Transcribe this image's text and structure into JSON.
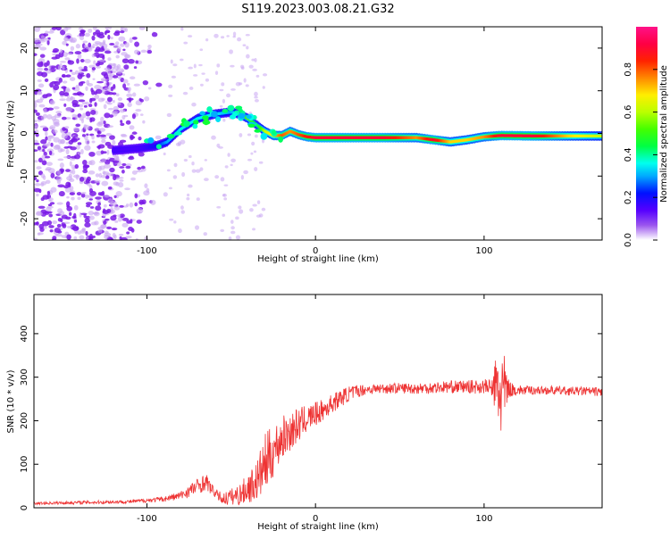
{
  "title": "S119.2023.003.08.21.G32",
  "colors": {
    "snr_line": "#ee3333",
    "spectrum_purple": "#7a1ae6",
    "spectrum_light": "#c9a6f2"
  },
  "chart_data": [
    {
      "type": "heatmap",
      "xlabel": "Height of straight line (km)",
      "ylabel": "Frequency (Hz)",
      "xlim": [
        -167,
        170
      ],
      "ylim": [
        -25,
        25
      ],
      "xticks": [
        -100,
        0,
        100
      ],
      "yticks": [
        -20,
        -10,
        0,
        10,
        20
      ],
      "colorbar": {
        "label": "Normalized spectral amplitude",
        "ticks": [
          "0.0",
          "0.2",
          "0.4",
          "0.6",
          "0.8"
        ],
        "tick_values": [
          0,
          0.2,
          0.4,
          0.6,
          0.8
        ],
        "range": [
          0,
          1
        ]
      },
      "ridge": {
        "x": [
          -120,
          -105,
          -95,
          -88,
          -80,
          -70,
          -60,
          -50,
          -45,
          -40,
          -35,
          -30,
          -25,
          -20,
          -15,
          -10,
          -5,
          0,
          20,
          40,
          60,
          70,
          80,
          90,
          100,
          110,
          130,
          150,
          170
        ],
        "y": [
          -4,
          -3.5,
          -3,
          -2,
          1,
          3.5,
          4.5,
          5,
          4.5,
          3.5,
          2,
          0.5,
          -0.5,
          -0.5,
          0.5,
          -0.3,
          -0.8,
          -1,
          -1,
          -1,
          -1,
          -1.5,
          -2,
          -1.5,
          -0.8,
          -0.5,
          -0.6,
          -0.6,
          -0.6
        ],
        "amplitude": [
          0.15,
          0.15,
          0.2,
          0.3,
          0.35,
          0.35,
          0.35,
          0.3,
          0.4,
          0.55,
          0.4,
          0.6,
          0.7,
          0.8,
          0.75,
          0.8,
          0.85,
          0.9,
          0.9,
          0.9,
          0.75,
          0.9,
          0.7,
          0.7,
          0.75,
          0.9,
          0.9,
          0.7,
          0.6
        ]
      },
      "noise_region_x": [
        -167,
        -90
      ]
    },
    {
      "type": "line",
      "xlabel": "Height of straight line (km)",
      "ylabel": "SNR (10 * v/v)",
      "xlim": [
        -167,
        170
      ],
      "ylim": [
        0,
        490
      ],
      "xticks": [
        -100,
        0,
        100
      ],
      "yticks": [
        0,
        100,
        200,
        300,
        400
      ],
      "series": [
        {
          "x": [
            -167,
            -140,
            -110,
            -90,
            -80,
            -72,
            -65,
            -60,
            -55,
            -45,
            -35,
            -30,
            -25,
            -20,
            -15,
            -10,
            -5,
            0,
            5,
            10,
            15,
            20,
            25,
            30,
            40,
            50,
            60,
            70,
            80,
            90,
            95,
            100,
            105,
            108,
            110,
            112,
            115,
            120,
            130,
            140,
            150,
            160,
            170
          ],
          "values": [
            10,
            12,
            14,
            20,
            28,
            45,
            60,
            35,
            20,
            30,
            60,
            100,
            130,
            160,
            175,
            190,
            205,
            215,
            225,
            240,
            252,
            262,
            268,
            272,
            274,
            275,
            274,
            276,
            278,
            278,
            278,
            279,
            275,
            270,
            268,
            270,
            272,
            270,
            270,
            270,
            268,
            268,
            266
          ],
          "noise": [
            3,
            4,
            4,
            6,
            10,
            18,
            20,
            10,
            14,
            25,
            45,
            70,
            60,
            50,
            45,
            40,
            30,
            28,
            25,
            22,
            20,
            18,
            15,
            12,
            12,
            12,
            13,
            14,
            14,
            15,
            16,
            17,
            20,
            120,
            120,
            80,
            18,
            12,
            10,
            10,
            10,
            10,
            10
          ]
        }
      ]
    }
  ]
}
